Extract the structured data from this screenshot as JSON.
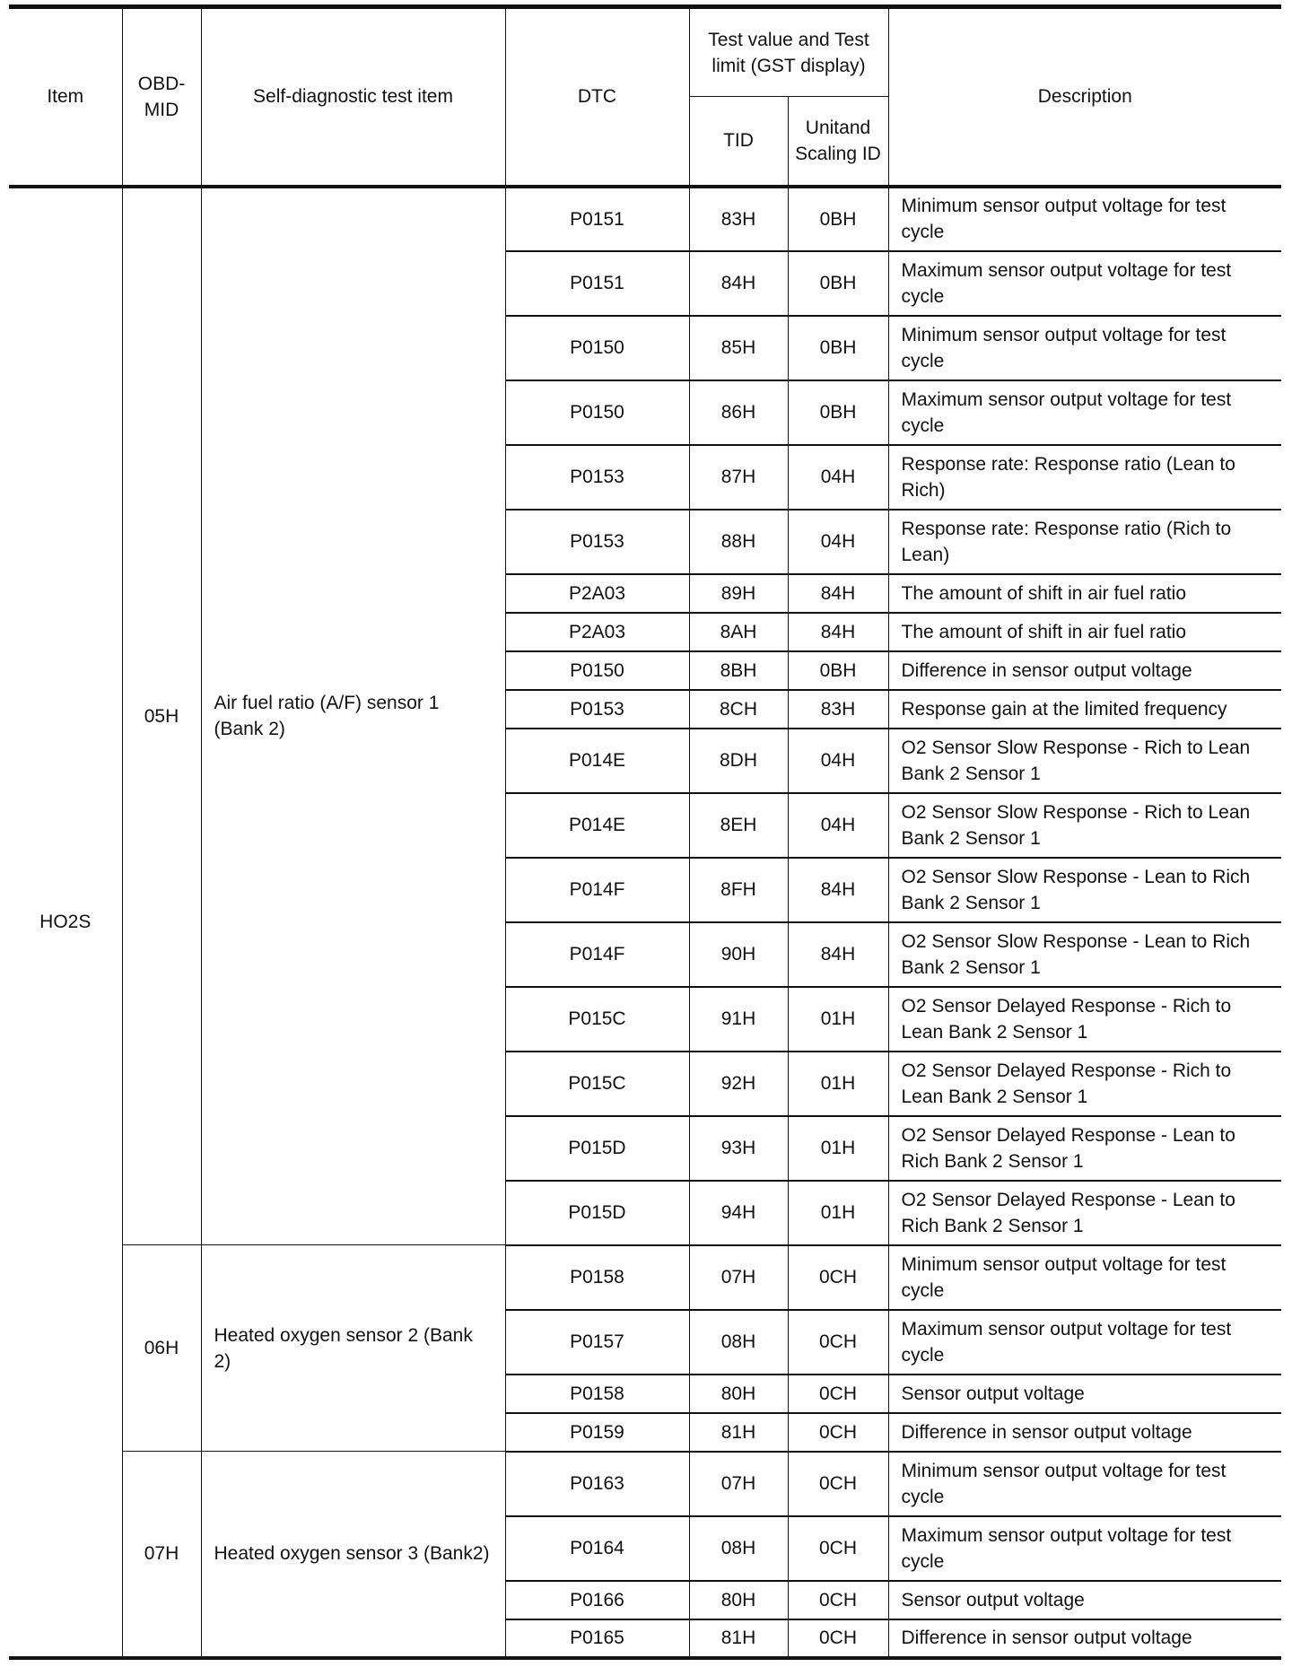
{
  "header": {
    "item": "Item",
    "obd_mid": "OBD-MID",
    "test_item": "Self-diagnostic test item",
    "dtc": "DTC",
    "test_value": "Test value and Test limit (GST display)",
    "tid": "TID",
    "unit_scaling": "Unitand Scaling ID",
    "description": "Description"
  },
  "item": "HO2S",
  "groups": [
    {
      "obd_mid": "05H",
      "test_item": "Air fuel ratio (A/F) sensor 1 (Bank 2)",
      "rows": [
        {
          "dtc": "P0151",
          "tid": "83H",
          "uas": "0BH",
          "desc": "Minimum sensor output voltage for test cycle",
          "tall": true
        },
        {
          "dtc": "P0151",
          "tid": "84H",
          "uas": "0BH",
          "desc": "Maximum sensor output voltage for test cycle",
          "tall": true
        },
        {
          "dtc": "P0150",
          "tid": "85H",
          "uas": "0BH",
          "desc": "Minimum sensor output voltage for test cycle",
          "tall": true
        },
        {
          "dtc": "P0150",
          "tid": "86H",
          "uas": "0BH",
          "desc": "Maximum sensor output voltage for test cycle",
          "tall": true
        },
        {
          "dtc": "P0153",
          "tid": "87H",
          "uas": "04H",
          "desc": "Response rate: Response ratio (Lean to Rich)",
          "tall": true
        },
        {
          "dtc": "P0153",
          "tid": "88H",
          "uas": "04H",
          "desc": "Response rate: Response ratio (Rich to Lean)",
          "tall": true
        },
        {
          "dtc": "P2A03",
          "tid": "89H",
          "uas": "84H",
          "desc": "The amount of shift in air fuel ratio",
          "tall": false
        },
        {
          "dtc": "P2A03",
          "tid": "8AH",
          "uas": "84H",
          "desc": "The amount of shift in air fuel ratio",
          "tall": false
        },
        {
          "dtc": "P0150",
          "tid": "8BH",
          "uas": "0BH",
          "desc": "Difference in sensor output voltage",
          "tall": false
        },
        {
          "dtc": "P0153",
          "tid": "8CH",
          "uas": "83H",
          "desc": "Response gain at the limited frequency",
          "tall": false
        },
        {
          "dtc": "P014E",
          "tid": "8DH",
          "uas": "04H",
          "desc": "O2 Sensor Slow Response - Rich to Lean Bank 2 Sensor 1",
          "tall": true
        },
        {
          "dtc": "P014E",
          "tid": "8EH",
          "uas": "04H",
          "desc": "O2 Sensor Slow Response - Rich to Lean Bank 2 Sensor 1",
          "tall": true
        },
        {
          "dtc": "P014F",
          "tid": "8FH",
          "uas": "84H",
          "desc": "O2 Sensor Slow Response - Lean to Rich Bank 2 Sensor 1",
          "tall": true
        },
        {
          "dtc": "P014F",
          "tid": "90H",
          "uas": "84H",
          "desc": "O2 Sensor Slow Response - Lean to Rich Bank 2 Sensor 1",
          "tall": true
        },
        {
          "dtc": "P015C",
          "tid": "91H",
          "uas": "01H",
          "desc": "O2 Sensor Delayed Response - Rich to Lean Bank 2 Sensor 1",
          "tall": true
        },
        {
          "dtc": "P015C",
          "tid": "92H",
          "uas": "01H",
          "desc": "O2 Sensor Delayed Response - Rich to Lean Bank 2 Sensor 1",
          "tall": true
        },
        {
          "dtc": "P015D",
          "tid": "93H",
          "uas": "01H",
          "desc": "O2 Sensor Delayed Response - Lean to Rich Bank 2 Sensor 1",
          "tall": true
        },
        {
          "dtc": "P015D",
          "tid": "94H",
          "uas": "01H",
          "desc": "O2 Sensor Delayed Response - Lean to Rich Bank 2 Sensor 1",
          "tall": true
        }
      ]
    },
    {
      "obd_mid": "06H",
      "test_item": "Heated oxygen sensor 2 (Bank 2)",
      "rows": [
        {
          "dtc": "P0158",
          "tid": "07H",
          "uas": "0CH",
          "desc": "Minimum sensor output voltage for test cycle",
          "tall": true
        },
        {
          "dtc": "P0157",
          "tid": "08H",
          "uas": "0CH",
          "desc": "Maximum sensor output voltage for test cycle",
          "tall": true
        },
        {
          "dtc": "P0158",
          "tid": "80H",
          "uas": "0CH",
          "desc": "Sensor output voltage",
          "tall": false
        },
        {
          "dtc": "P0159",
          "tid": "81H",
          "uas": "0CH",
          "desc": "Difference in sensor output voltage",
          "tall": false
        }
      ]
    },
    {
      "obd_mid": "07H",
      "test_item": "Heated oxygen sensor 3 (Bank2)",
      "rows": [
        {
          "dtc": "P0163",
          "tid": "07H",
          "uas": "0CH",
          "desc": "Minimum sensor output voltage for test cycle",
          "tall": true
        },
        {
          "dtc": "P0164",
          "tid": "08H",
          "uas": "0CH",
          "desc": "Maximum sensor output voltage for test cycle",
          "tall": true
        },
        {
          "dtc": "P0166",
          "tid": "80H",
          "uas": "0CH",
          "desc": "Sensor output voltage",
          "tall": false
        },
        {
          "dtc": "P0165",
          "tid": "81H",
          "uas": "0CH",
          "desc": "Difference in sensor output voltage",
          "tall": false
        }
      ]
    }
  ]
}
